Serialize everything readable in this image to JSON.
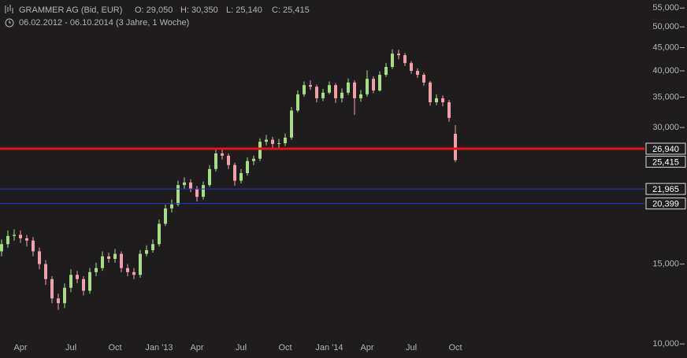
{
  "chart_data": {
    "type": "candlestick",
    "title": "GRAMMER AG (Bid, EUR)",
    "ohlc_labels": [
      "O: 29,050",
      "H: 30,350",
      "L: 25,140",
      "C: 25,415"
    ],
    "subtitle": "06.02.2012 - 06.10.2014 (3 Jahre, 1 Woche)",
    "log_scale": true,
    "ylim": [
      9500,
      57300
    ],
    "yticks": [
      {
        "value": 10000,
        "label": "10,000"
      },
      {
        "value": 15000,
        "label": "15,000"
      },
      {
        "value": 30000,
        "label": "30,000"
      },
      {
        "value": 35000,
        "label": "35,000"
      },
      {
        "value": 40000,
        "label": "40,000"
      },
      {
        "value": 45000,
        "label": "45,000"
      },
      {
        "value": 50000,
        "label": "50,000"
      },
      {
        "value": 55000,
        "label": "55,000"
      }
    ],
    "categories": [
      null,
      null,
      null,
      "Apr",
      null,
      null,
      null,
      null,
      null,
      null,
      null,
      "Jul",
      null,
      null,
      null,
      null,
      null,
      null,
      "Oct",
      null,
      null,
      null,
      null,
      null,
      null,
      "Jan '13",
      null,
      null,
      null,
      null,
      null,
      "Apr",
      null,
      null,
      null,
      null,
      null,
      null,
      "Jul",
      null,
      null,
      null,
      null,
      null,
      null,
      "Oct",
      null,
      null,
      null,
      null,
      null,
      null,
      "Jan '14",
      null,
      null,
      null,
      null,
      null,
      "Apr",
      null,
      null,
      null,
      null,
      null,
      null,
      "Jul",
      null,
      null,
      null,
      null,
      null,
      null,
      "Oct"
    ],
    "open": [
      16000,
      16600,
      17300,
      17400,
      17100,
      16900,
      16000,
      15000,
      13900,
      12600,
      12300,
      13300,
      14200,
      13900,
      13100,
      14400,
      14700,
      15600,
      15400,
      15800,
      14700,
      14400,
      14200,
      15800,
      16100,
      16600,
      18400,
      19900,
      20300,
      22400,
      22700,
      22000,
      21100,
      22400,
      24300,
      26300,
      26000,
      24800,
      22900,
      23800,
      25300,
      25600,
      27900,
      28200,
      27600,
      27700,
      28500,
      32700,
      35500,
      37200,
      36900,
      34800,
      35800,
      37200,
      34800,
      35800,
      37700,
      34800,
      35500,
      38400,
      36200,
      39200,
      40800,
      43650,
      43300,
      41600,
      40000,
      39200,
      37700,
      34100,
      34800,
      34100,
      29050
    ],
    "high": [
      17000,
      17800,
      17900,
      17800,
      17400,
      17200,
      16300,
      15300,
      14100,
      12900,
      13600,
      14600,
      14500,
      14100,
      14700,
      15100,
      16000,
      15900,
      16200,
      16000,
      15000,
      14700,
      16100,
      16500,
      17000,
      18800,
      20300,
      20800,
      22900,
      23300,
      23100,
      22300,
      22800,
      24800,
      26900,
      27000,
      26300,
      25100,
      24300,
      25800,
      26000,
      28400,
      28900,
      28600,
      28300,
      29100,
      33300,
      36200,
      37900,
      38100,
      37300,
      36500,
      37900,
      37600,
      36600,
      38500,
      38100,
      36300,
      40100,
      38900,
      39900,
      41600,
      44600,
      44500,
      43800,
      42000,
      40500,
      39600,
      38000,
      35500,
      35300,
      34500,
      30350
    ],
    "low": [
      15600,
      16300,
      16900,
      16700,
      16400,
      15600,
      14600,
      13500,
      12300,
      11900,
      12000,
      13000,
      13600,
      12800,
      12900,
      14100,
      14500,
      15100,
      15100,
      14400,
      14100,
      13900,
      14000,
      15600,
      15900,
      16400,
      18200,
      19500,
      20100,
      22000,
      21600,
      20600,
      20800,
      22200,
      24000,
      25500,
      24300,
      22300,
      22600,
      23500,
      24800,
      25300,
      27400,
      27000,
      26900,
      27300,
      28200,
      32400,
      35100,
      36300,
      34100,
      34300,
      35500,
      34000,
      34100,
      35400,
      32000,
      34200,
      35100,
      35700,
      36000,
      38800,
      40400,
      42400,
      41000,
      39400,
      38600,
      37100,
      33500,
      33600,
      33400,
      30900,
      25140
    ],
    "close": [
      16600,
      17300,
      17400,
      17100,
      16900,
      16000,
      15000,
      13900,
      12600,
      12300,
      13300,
      14200,
      13900,
      13100,
      14400,
      14700,
      15600,
      15400,
      15800,
      14700,
      14400,
      14200,
      15800,
      16100,
      16600,
      18400,
      19900,
      20300,
      22400,
      22700,
      22000,
      21100,
      22400,
      24300,
      26300,
      26000,
      24800,
      22900,
      23800,
      25300,
      25600,
      27900,
      28200,
      27600,
      27700,
      28500,
      32700,
      35500,
      37200,
      36900,
      34800,
      35800,
      37200,
      34800,
      35800,
      37700,
      34800,
      35500,
      38400,
      36200,
      39200,
      40800,
      43650,
      43300,
      41600,
      40000,
      39200,
      37700,
      34100,
      34800,
      34100,
      31500,
      25415
    ],
    "up_color": "#a6dc86",
    "down_color": "#f0a0a8",
    "close_label": "25,415",
    "levels": [
      {
        "value": 26940,
        "label": "26,940",
        "color": "#ee1111"
      },
      {
        "value": 21965,
        "label": "21,965",
        "color": "#2238c8"
      },
      {
        "value": 20399,
        "label": "20,399",
        "color": "#2238c8"
      }
    ]
  }
}
